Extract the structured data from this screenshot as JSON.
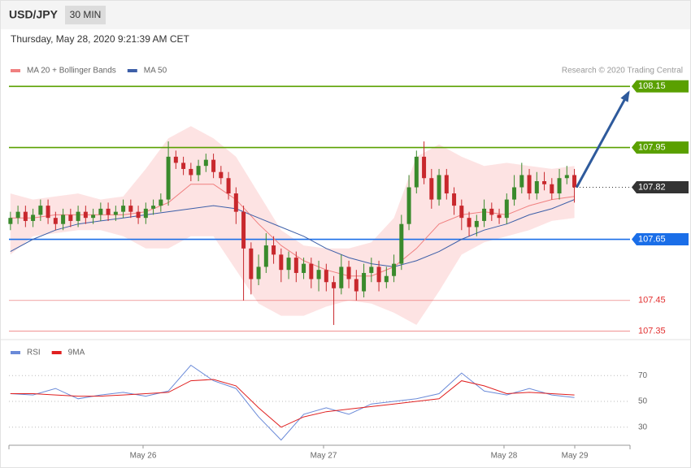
{
  "header": {
    "symbol": "USD/JPY",
    "interval": "30 MIN",
    "timestamp": "Thursday, May 28, 2020 9:21:39 AM CET"
  },
  "chart_data": [
    {
      "type": "candlestick",
      "credit": "Research © 2020 Trading Central",
      "up_color": "#3a8a2c",
      "down_color": "#c8282d",
      "xlim": [
        -0.2,
        82.4
      ],
      "ylim": [
        107.33,
        108.18
      ],
      "x": [
        0,
        1,
        2,
        3,
        4,
        5,
        6,
        7,
        8,
        9,
        10,
        11,
        12,
        13,
        14,
        15,
        16,
        17,
        18,
        19,
        20,
        21,
        22,
        23,
        24,
        25,
        26,
        27,
        28,
        29,
        30,
        31,
        32,
        33,
        34,
        35,
        36,
        37,
        38,
        39,
        40,
        41,
        42,
        43,
        44,
        45,
        46,
        47,
        48,
        49,
        50,
        51,
        52,
        53,
        54,
        55,
        56,
        57,
        58,
        59,
        60,
        61,
        62,
        63,
        64,
        65,
        66,
        67,
        68,
        69,
        70,
        71,
        72,
        73,
        74,
        75
      ],
      "open": [
        107.7,
        107.72,
        107.74,
        107.71,
        107.73,
        107.76,
        107.72,
        107.7,
        107.73,
        107.71,
        107.74,
        107.72,
        107.73,
        107.75,
        107.73,
        107.74,
        107.76,
        107.74,
        107.72,
        107.75,
        107.76,
        107.78,
        107.92,
        107.9,
        107.88,
        107.86,
        107.89,
        107.91,
        107.87,
        107.85,
        107.8,
        107.74,
        107.62,
        107.52,
        107.56,
        107.63,
        107.6,
        107.55,
        107.59,
        107.54,
        107.57,
        107.52,
        107.55,
        107.51,
        107.49,
        107.56,
        107.52,
        107.48,
        107.54,
        107.56,
        107.51,
        107.53,
        107.57,
        107.7,
        107.82,
        107.92,
        107.85,
        107.78,
        107.86,
        107.8,
        107.76,
        107.72,
        107.69,
        107.71,
        107.75,
        107.73,
        107.72,
        107.78,
        107.82,
        107.86,
        107.8,
        107.84,
        107.83,
        107.8,
        107.85,
        107.86
      ],
      "high": [
        107.74,
        107.76,
        107.76,
        107.75,
        107.78,
        107.78,
        107.74,
        107.75,
        107.75,
        107.76,
        107.76,
        107.75,
        107.77,
        107.77,
        107.76,
        107.78,
        107.78,
        107.76,
        107.77,
        107.78,
        107.8,
        107.97,
        107.94,
        107.92,
        107.9,
        107.91,
        107.93,
        107.93,
        107.89,
        107.87,
        107.82,
        107.76,
        107.64,
        107.6,
        107.67,
        107.66,
        107.62,
        107.61,
        107.61,
        107.59,
        107.59,
        107.58,
        107.57,
        107.53,
        107.6,
        107.58,
        107.55,
        107.57,
        107.59,
        107.58,
        107.56,
        107.6,
        107.73,
        107.86,
        107.94,
        107.97,
        107.88,
        107.88,
        107.88,
        107.82,
        107.78,
        107.74,
        107.73,
        107.78,
        107.77,
        107.75,
        107.8,
        107.86,
        107.9,
        107.88,
        107.87,
        107.87,
        107.85,
        107.88,
        107.89,
        107.88
      ],
      "low": [
        107.68,
        107.7,
        107.69,
        107.69,
        107.71,
        107.7,
        107.68,
        107.68,
        107.69,
        107.69,
        107.7,
        107.7,
        107.71,
        107.71,
        107.71,
        107.72,
        107.72,
        107.7,
        107.7,
        107.73,
        107.74,
        107.76,
        107.88,
        107.86,
        107.84,
        107.84,
        107.87,
        107.85,
        107.83,
        107.78,
        107.7,
        107.45,
        107.47,
        107.5,
        107.54,
        107.57,
        107.51,
        107.52,
        107.51,
        107.52,
        107.49,
        107.48,
        107.48,
        107.37,
        107.47,
        107.49,
        107.45,
        107.46,
        107.51,
        107.48,
        107.49,
        107.51,
        107.55,
        107.68,
        107.8,
        107.83,
        107.75,
        107.76,
        107.78,
        107.73,
        107.68,
        107.66,
        107.66,
        107.69,
        107.71,
        107.7,
        107.7,
        107.76,
        107.8,
        107.78,
        107.78,
        107.81,
        107.78,
        107.78,
        107.83,
        107.77
      ],
      "close": [
        107.72,
        107.74,
        107.71,
        107.73,
        107.76,
        107.72,
        107.7,
        107.73,
        107.71,
        107.74,
        107.72,
        107.73,
        107.75,
        107.73,
        107.74,
        107.76,
        107.74,
        107.72,
        107.75,
        107.76,
        107.78,
        107.92,
        107.9,
        107.88,
        107.86,
        107.89,
        107.91,
        107.87,
        107.85,
        107.8,
        107.74,
        107.62,
        107.52,
        107.56,
        107.63,
        107.6,
        107.55,
        107.59,
        107.54,
        107.57,
        107.52,
        107.55,
        107.51,
        107.49,
        107.56,
        107.52,
        107.48,
        107.54,
        107.56,
        107.51,
        107.53,
        107.57,
        107.7,
        107.82,
        107.92,
        107.85,
        107.78,
        107.86,
        107.8,
        107.76,
        107.72,
        107.69,
        107.71,
        107.75,
        107.73,
        107.72,
        107.78,
        107.82,
        107.86,
        107.8,
        107.84,
        107.83,
        107.8,
        107.85,
        107.86,
        107.82
      ],
      "series": [
        {
          "name": "MA 20 + Bollinger Bands",
          "color": "#f08080",
          "band_color": "#fde3e3",
          "x": [
            0,
            3,
            6,
            9,
            12,
            15,
            18,
            21,
            24,
            27,
            30,
            33,
            36,
            39,
            42,
            45,
            48,
            51,
            54,
            57,
            60,
            63,
            66,
            69,
            72,
            75
          ],
          "values": [
            107.72,
            107.72,
            107.73,
            107.73,
            107.73,
            107.73,
            107.74,
            107.77,
            107.83,
            107.83,
            107.78,
            107.7,
            107.63,
            107.58,
            107.55,
            107.53,
            107.53,
            107.56,
            107.62,
            107.7,
            107.73,
            107.74,
            107.73,
            107.76,
            107.78,
            107.79
          ],
          "upper": [
            107.8,
            107.78,
            107.79,
            107.8,
            107.78,
            107.79,
            107.88,
            107.98,
            108.02,
            107.98,
            107.92,
            107.8,
            107.68,
            107.63,
            107.62,
            107.62,
            107.64,
            107.72,
            107.92,
            107.96,
            107.92,
            107.89,
            107.9,
            107.89,
            107.88,
            107.89
          ],
          "lower": [
            107.6,
            107.66,
            107.67,
            107.68,
            107.68,
            107.66,
            107.62,
            107.62,
            107.66,
            107.66,
            107.55,
            107.44,
            107.4,
            107.4,
            107.43,
            107.45,
            107.44,
            107.41,
            107.37,
            107.48,
            107.6,
            107.64,
            107.66,
            107.68,
            107.71,
            107.72
          ]
        },
        {
          "name": "MA 50",
          "color": "#3d5fa8",
          "x": [
            0,
            3,
            6,
            9,
            12,
            15,
            18,
            21,
            24,
            27,
            30,
            33,
            36,
            39,
            42,
            45,
            48,
            51,
            54,
            57,
            60,
            63,
            66,
            69,
            72,
            75
          ],
          "values": [
            107.61,
            107.65,
            107.68,
            107.7,
            107.71,
            107.72,
            107.73,
            107.74,
            107.75,
            107.76,
            107.75,
            107.72,
            107.69,
            107.66,
            107.62,
            107.59,
            107.57,
            107.56,
            107.58,
            107.61,
            107.65,
            107.68,
            107.7,
            107.73,
            107.75,
            107.78
          ]
        }
      ],
      "levels": [
        {
          "value": 108.15,
          "color": "#5aa000",
          "style": "solid",
          "tag": true
        },
        {
          "value": 107.95,
          "color": "#5aa000",
          "style": "solid",
          "tag": true
        },
        {
          "value": 107.82,
          "color": "#333333",
          "style": "dotted",
          "tag": true
        },
        {
          "value": 107.65,
          "color": "#1a6ee8",
          "style": "solid",
          "tag": true
        },
        {
          "value": 107.45,
          "color": "#e23030",
          "style": "thin",
          "tag": false
        },
        {
          "value": 107.35,
          "color": "#e23030",
          "style": "thin",
          "tag": false
        }
      ],
      "projection": {
        "color": "#2e5a9c",
        "x": [
          75.3,
          82.2
        ],
        "values": [
          107.82,
          108.13
        ]
      }
    },
    {
      "type": "line",
      "xlim": [
        -0.2,
        82.4
      ],
      "ylim": [
        16,
        84
      ],
      "yticks": [
        30,
        50,
        70
      ],
      "xticks": [
        {
          "value": 17.64,
          "label": "May 26"
        },
        {
          "value": 41.64,
          "label": "May 27"
        },
        {
          "value": 65.64,
          "label": "May 28"
        },
        {
          "value": 75.05,
          "label": "May 29"
        }
      ],
      "series": [
        {
          "name": "RSI",
          "color": "#6a8ad8",
          "x": [
            0,
            3,
            6,
            9,
            12,
            15,
            18,
            21,
            24,
            27,
            30,
            33,
            36,
            39,
            42,
            45,
            48,
            51,
            54,
            57,
            60,
            63,
            66,
            69,
            72,
            75
          ],
          "values": [
            56,
            55,
            60,
            52,
            55,
            57,
            54,
            58,
            78,
            66,
            60,
            38,
            20,
            40,
            45,
            40,
            48,
            50,
            52,
            56,
            72,
            58,
            55,
            60,
            55,
            53
          ]
        },
        {
          "name": "9MA",
          "color": "#e02020",
          "x": [
            0,
            3,
            6,
            9,
            12,
            15,
            18,
            21,
            24,
            27,
            30,
            33,
            36,
            39,
            42,
            45,
            48,
            51,
            54,
            57,
            60,
            63,
            66,
            69,
            72,
            75
          ],
          "values": [
            56,
            56,
            55,
            54,
            54,
            55,
            56,
            57,
            66,
            67,
            62,
            45,
            30,
            38,
            42,
            44,
            46,
            48,
            50,
            52,
            66,
            62,
            56,
            57,
            56,
            55
          ]
        }
      ]
    }
  ]
}
